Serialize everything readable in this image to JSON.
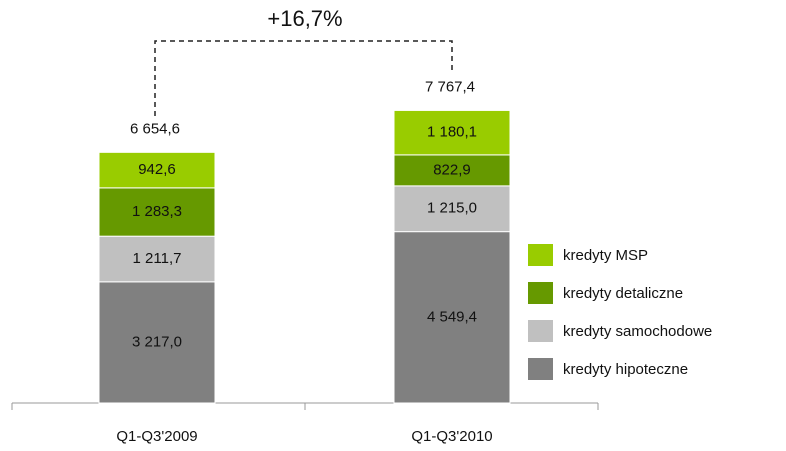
{
  "chart_data": {
    "type": "stacked_bar",
    "annotation": "+16,7%",
    "categories": [
      "Q1-Q3'2009",
      "Q1-Q3'2010"
    ],
    "totals": [
      6654.6,
      7767.4
    ],
    "total_labels": [
      "6 654,6",
      "7 767,4"
    ],
    "ylim": [
      0,
      9000
    ],
    "legend": "right",
    "series": [
      {
        "name": "kredyty hipoteczne",
        "color": "#808080",
        "values": [
          3217.0,
          4549.4
        ],
        "value_labels": [
          "3 217,0",
          "4 549,4"
        ]
      },
      {
        "name": "kredyty samochodowe",
        "color": "#c0c0c0",
        "values": [
          1211.7,
          1215.0
        ],
        "value_labels": [
          "1 211,7",
          "1 215,0"
        ]
      },
      {
        "name": "kredyty detaliczne",
        "color": "#669900",
        "values": [
          1283.3,
          822.9
        ],
        "value_labels": [
          "1 283,3",
          "822,9"
        ]
      },
      {
        "name": "kredyty MSP",
        "color": "#99cc00",
        "values": [
          942.6,
          1180.1
        ],
        "value_labels": [
          "942,6",
          "1 180,1"
        ]
      }
    ]
  }
}
